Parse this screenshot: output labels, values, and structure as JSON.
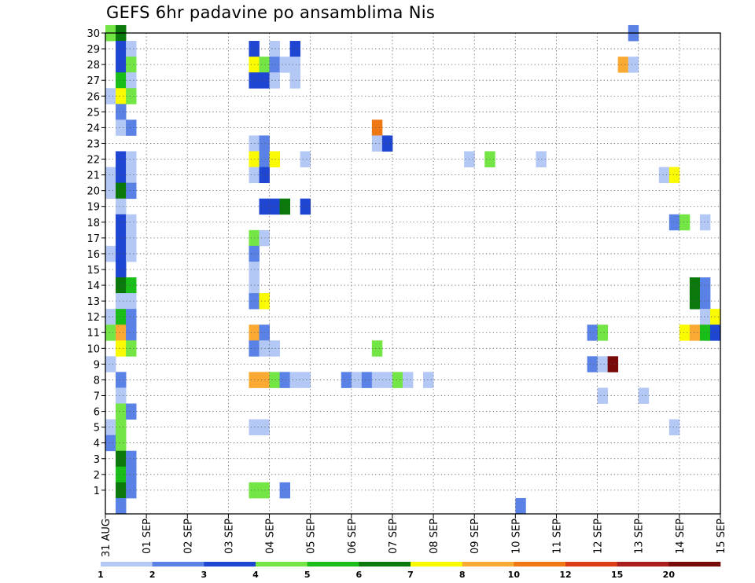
{
  "chart_data": {
    "type": "heatmap",
    "title": "GEFS 6hr padavine po ansamblima Nis",
    "xlabel": "",
    "ylabel": "",
    "x_ticks": [
      "31 AUG",
      "01 SEP",
      "02 SEP",
      "03 SEP",
      "04 SEP",
      "05 SEP",
      "06 SEP",
      "07 SEP",
      "08 SEP",
      "09 SEP",
      "10 SEP",
      "11 SEP",
      "12 SEP",
      "13 SEP",
      "14 SEP",
      "15 SEP"
    ],
    "y_ticks": [
      "1",
      "2",
      "3",
      "4",
      "5",
      "6",
      "7",
      "8",
      "9",
      "10",
      "11",
      "12",
      "13",
      "14",
      "15",
      "16",
      "17",
      "18",
      "19",
      "20",
      "21",
      "22",
      "23",
      "24",
      "25",
      "26",
      "27",
      "28",
      "29",
      "30"
    ],
    "xlim": [
      0,
      15
    ],
    "ylim": [
      0,
      30
    ],
    "time_step_days": 0.25,
    "grid": "dotted",
    "colorbar": {
      "position": "bottom",
      "tick_labels": [
        "1",
        "2",
        "3",
        "4",
        "5",
        "6",
        "7",
        "8",
        "10",
        "12",
        "15",
        "20"
      ],
      "colors": [
        "#b4c8f5",
        "#5a82e6",
        "#1e46d2",
        "#73e646",
        "#19be19",
        "#0a780a",
        "#fafa00",
        "#faaa32",
        "#f07814",
        "#dc3c14",
        "#ab1e1e",
        "#780a0a"
      ]
    },
    "cells": [
      {
        "member": 30,
        "day": 0.0,
        "level": 4
      },
      {
        "member": 30,
        "day": 0.25,
        "level": 6
      },
      {
        "member": 30,
        "day": 12.75,
        "level": 2
      },
      {
        "member": 29,
        "day": 0.25,
        "level": 3
      },
      {
        "member": 29,
        "day": 0.5,
        "level": 1
      },
      {
        "member": 29,
        "day": 3.5,
        "level": 3
      },
      {
        "member": 29,
        "day": 4.0,
        "level": 1
      },
      {
        "member": 29,
        "day": 4.5,
        "level": 3
      },
      {
        "member": 28,
        "day": 0.25,
        "level": 3
      },
      {
        "member": 28,
        "day": 0.5,
        "level": 4
      },
      {
        "member": 28,
        "day": 3.5,
        "level": 7
      },
      {
        "member": 28,
        "day": 3.75,
        "level": 4
      },
      {
        "member": 28,
        "day": 4.0,
        "level": 2
      },
      {
        "member": 28,
        "day": 4.25,
        "level": 1
      },
      {
        "member": 28,
        "day": 4.5,
        "level": 1
      },
      {
        "member": 28,
        "day": 12.5,
        "level": 8
      },
      {
        "member": 28,
        "day": 12.75,
        "level": 1
      },
      {
        "member": 27,
        "day": 0.25,
        "level": 5
      },
      {
        "member": 27,
        "day": 0.5,
        "level": 1
      },
      {
        "member": 27,
        "day": 3.5,
        "level": 3
      },
      {
        "member": 27,
        "day": 3.75,
        "level": 3
      },
      {
        "member": 27,
        "day": 4.0,
        "level": 1
      },
      {
        "member": 27,
        "day": 4.5,
        "level": 1
      },
      {
        "member": 26,
        "day": 0.0,
        "level": 1
      },
      {
        "member": 26,
        "day": 0.25,
        "level": 7
      },
      {
        "member": 26,
        "day": 0.5,
        "level": 4
      },
      {
        "member": 25,
        "day": 0.25,
        "level": 2
      },
      {
        "member": 24,
        "day": 0.25,
        "level": 1
      },
      {
        "member": 24,
        "day": 0.5,
        "level": 2
      },
      {
        "member": 24,
        "day": 6.5,
        "level": 9
      },
      {
        "member": 23,
        "day": 3.5,
        "level": 1
      },
      {
        "member": 23,
        "day": 3.75,
        "level": 2
      },
      {
        "member": 23,
        "day": 6.5,
        "level": 1
      },
      {
        "member": 23,
        "day": 6.75,
        "level": 3
      },
      {
        "member": 22,
        "day": 0.25,
        "level": 3
      },
      {
        "member": 22,
        "day": 0.5,
        "level": 1
      },
      {
        "member": 22,
        "day": 3.5,
        "level": 7
      },
      {
        "member": 22,
        "day": 3.75,
        "level": 2
      },
      {
        "member": 22,
        "day": 4.0,
        "level": 7
      },
      {
        "member": 22,
        "day": 4.75,
        "level": 1
      },
      {
        "member": 22,
        "day": 8.75,
        "level": 1
      },
      {
        "member": 22,
        "day": 9.25,
        "level": 4
      },
      {
        "member": 22,
        "day": 10.5,
        "level": 1
      },
      {
        "member": 21,
        "day": 0.0,
        "level": 1
      },
      {
        "member": 21,
        "day": 0.25,
        "level": 3
      },
      {
        "member": 21,
        "day": 0.5,
        "level": 1
      },
      {
        "member": 21,
        "day": 3.5,
        "level": 1
      },
      {
        "member": 21,
        "day": 3.75,
        "level": 3
      },
      {
        "member": 21,
        "day": 13.5,
        "level": 1
      },
      {
        "member": 21,
        "day": 13.75,
        "level": 7
      },
      {
        "member": 20,
        "day": 0.0,
        "level": 1
      },
      {
        "member": 20,
        "day": 0.25,
        "level": 6
      },
      {
        "member": 20,
        "day": 0.5,
        "level": 2
      },
      {
        "member": 19,
        "day": 0.25,
        "level": 1
      },
      {
        "member": 19,
        "day": 3.75,
        "level": 3
      },
      {
        "member": 19,
        "day": 4.0,
        "level": 3
      },
      {
        "member": 19,
        "day": 4.25,
        "level": 6
      },
      {
        "member": 19,
        "day": 4.75,
        "level": 3
      },
      {
        "member": 18,
        "day": 0.25,
        "level": 3
      },
      {
        "member": 18,
        "day": 0.5,
        "level": 1
      },
      {
        "member": 18,
        "day": 13.75,
        "level": 2
      },
      {
        "member": 18,
        "day": 14.0,
        "level": 4
      },
      {
        "member": 18,
        "day": 14.5,
        "level": 1
      },
      {
        "member": 17,
        "day": 0.25,
        "level": 3
      },
      {
        "member": 17,
        "day": 0.5,
        "level": 1
      },
      {
        "member": 17,
        "day": 3.5,
        "level": 4
      },
      {
        "member": 17,
        "day": 3.75,
        "level": 1
      },
      {
        "member": 16,
        "day": 0.0,
        "level": 1
      },
      {
        "member": 16,
        "day": 0.25,
        "level": 3
      },
      {
        "member": 16,
        "day": 0.5,
        "level": 1
      },
      {
        "member": 16,
        "day": 3.5,
        "level": 2
      },
      {
        "member": 15,
        "day": 0.25,
        "level": 3
      },
      {
        "member": 15,
        "day": 3.5,
        "level": 1
      },
      {
        "member": 14,
        "day": 0.25,
        "level": 6
      },
      {
        "member": 14,
        "day": 0.5,
        "level": 5
      },
      {
        "member": 14,
        "day": 3.5,
        "level": 1
      },
      {
        "member": 14,
        "day": 14.25,
        "level": 6
      },
      {
        "member": 14,
        "day": 14.5,
        "level": 2
      },
      {
        "member": 13,
        "day": 0.25,
        "level": 1
      },
      {
        "member": 13,
        "day": 0.5,
        "level": 1
      },
      {
        "member": 13,
        "day": 3.5,
        "level": 2
      },
      {
        "member": 13,
        "day": 3.75,
        "level": 7
      },
      {
        "member": 13,
        "day": 14.25,
        "level": 6
      },
      {
        "member": 13,
        "day": 14.5,
        "level": 2
      },
      {
        "member": 12,
        "day": 0.0,
        "level": 1
      },
      {
        "member": 12,
        "day": 0.25,
        "level": 5
      },
      {
        "member": 12,
        "day": 0.5,
        "level": 2
      },
      {
        "member": 12,
        "day": 14.5,
        "level": 1
      },
      {
        "member": 12,
        "day": 14.75,
        "level": 7
      },
      {
        "member": 11,
        "day": 0.0,
        "level": 4
      },
      {
        "member": 11,
        "day": 0.25,
        "level": 8
      },
      {
        "member": 11,
        "day": 0.5,
        "level": 2
      },
      {
        "member": 11,
        "day": 3.5,
        "level": 8
      },
      {
        "member": 11,
        "day": 3.75,
        "level": 2
      },
      {
        "member": 11,
        "day": 11.75,
        "level": 2
      },
      {
        "member": 11,
        "day": 12.0,
        "level": 4
      },
      {
        "member": 11,
        "day": 14.0,
        "level": 7
      },
      {
        "member": 11,
        "day": 14.25,
        "level": 8
      },
      {
        "member": 11,
        "day": 14.5,
        "level": 5
      },
      {
        "member": 11,
        "day": 14.75,
        "level": 3
      },
      {
        "member": 10,
        "day": 0.25,
        "level": 7
      },
      {
        "member": 10,
        "day": 0.5,
        "level": 4
      },
      {
        "member": 10,
        "day": 3.5,
        "level": 2
      },
      {
        "member": 10,
        "day": 3.75,
        "level": 1
      },
      {
        "member": 10,
        "day": 4.0,
        "level": 1
      },
      {
        "member": 10,
        "day": 6.5,
        "level": 4
      },
      {
        "member": 9,
        "day": 0.0,
        "level": 1
      },
      {
        "member": 9,
        "day": 11.75,
        "level": 2
      },
      {
        "member": 9,
        "day": 12.0,
        "level": 1
      },
      {
        "member": 9,
        "day": 12.25,
        "level": 12
      },
      {
        "member": 8,
        "day": 0.25,
        "level": 2
      },
      {
        "member": 8,
        "day": 3.5,
        "level": 8
      },
      {
        "member": 8,
        "day": 3.75,
        "level": 8
      },
      {
        "member": 8,
        "day": 4.0,
        "level": 4
      },
      {
        "member": 8,
        "day": 4.25,
        "level": 2
      },
      {
        "member": 8,
        "day": 4.5,
        "level": 1
      },
      {
        "member": 8,
        "day": 4.75,
        "level": 1
      },
      {
        "member": 8,
        "day": 5.75,
        "level": 2
      },
      {
        "member": 8,
        "day": 6.0,
        "level": 1
      },
      {
        "member": 8,
        "day": 6.25,
        "level": 2
      },
      {
        "member": 8,
        "day": 6.5,
        "level": 1
      },
      {
        "member": 8,
        "day": 6.75,
        "level": 1
      },
      {
        "member": 8,
        "day": 7.0,
        "level": 4
      },
      {
        "member": 8,
        "day": 7.25,
        "level": 1
      },
      {
        "member": 8,
        "day": 7.75,
        "level": 1
      },
      {
        "member": 7,
        "day": 0.25,
        "level": 1
      },
      {
        "member": 7,
        "day": 12.0,
        "level": 1
      },
      {
        "member": 7,
        "day": 13.0,
        "level": 1
      },
      {
        "member": 6,
        "day": 0.25,
        "level": 4
      },
      {
        "member": 6,
        "day": 0.5,
        "level": 2
      },
      {
        "member": 5,
        "day": 0.0,
        "level": 1
      },
      {
        "member": 5,
        "day": 0.25,
        "level": 4
      },
      {
        "member": 5,
        "day": 3.5,
        "level": 1
      },
      {
        "member": 5,
        "day": 3.75,
        "level": 1
      },
      {
        "member": 5,
        "day": 13.75,
        "level": 1
      },
      {
        "member": 4,
        "day": 0.0,
        "level": 2
      },
      {
        "member": 4,
        "day": 0.25,
        "level": 4
      },
      {
        "member": 3,
        "day": 0.25,
        "level": 6
      },
      {
        "member": 3,
        "day": 0.5,
        "level": 2
      },
      {
        "member": 2,
        "day": 0.25,
        "level": 5
      },
      {
        "member": 2,
        "day": 0.5,
        "level": 2
      },
      {
        "member": 1,
        "day": 0.25,
        "level": 6
      },
      {
        "member": 1,
        "day": 0.5,
        "level": 2
      },
      {
        "member": 1,
        "day": 3.5,
        "level": 4
      },
      {
        "member": 1,
        "day": 3.75,
        "level": 4
      },
      {
        "member": 1,
        "day": 4.25,
        "level": 2
      },
      {
        "member": 0,
        "day": 0.25,
        "level": 2
      },
      {
        "member": 0,
        "day": 10.0,
        "level": 2
      }
    ]
  }
}
